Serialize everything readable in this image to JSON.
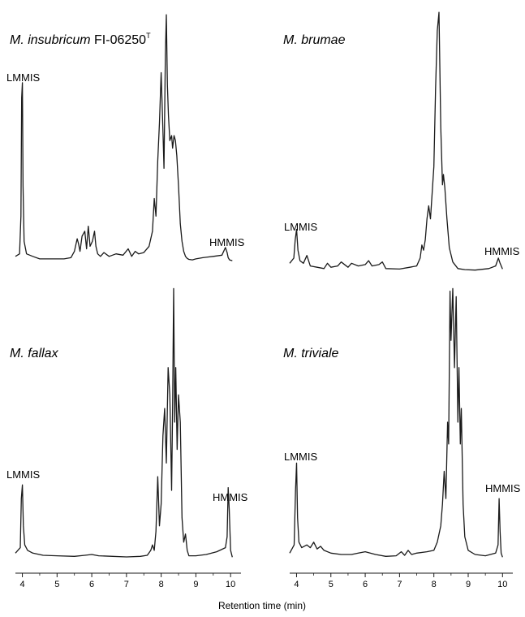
{
  "figure": {
    "x_axis_label": "Retention time (min)"
  },
  "chart_data": [
    {
      "type": "line",
      "title_italic": "M. insubricum",
      "title_rest": " FI-06250",
      "title_sup": "T",
      "xlim": [
        3.8,
        10.3
      ],
      "ylim": [
        0,
        1.0
      ],
      "xticks": [
        4,
        5,
        6,
        7,
        8,
        9,
        10
      ],
      "annotations": [
        {
          "label": "LMMIS",
          "x": 4.0
        },
        {
          "label": "HMMIS",
          "x": 9.9
        }
      ],
      "series": [
        {
          "x": [
            3.8,
            3.92,
            3.96,
            3.98,
            4.0,
            4.02,
            4.05,
            4.12,
            4.3,
            4.5,
            4.8,
            5.2,
            5.4,
            5.5,
            5.58,
            5.62,
            5.66,
            5.72,
            5.8,
            5.85,
            5.9,
            5.95,
            6.02,
            6.08,
            6.12,
            6.17,
            6.25,
            6.35,
            6.5,
            6.7,
            6.9,
            7.05,
            7.15,
            7.25,
            7.35,
            7.5,
            7.65,
            7.75,
            7.8,
            7.85,
            7.9,
            7.95,
            8.0,
            8.05,
            8.08,
            8.12,
            8.15,
            8.18,
            8.21,
            8.25,
            8.3,
            8.33,
            8.37,
            8.41,
            8.45,
            8.5,
            8.55,
            8.6,
            8.65,
            8.7,
            8.75,
            8.8,
            8.9,
            9.0,
            9.2,
            9.5,
            9.75,
            9.85,
            9.9,
            9.93,
            9.97,
            10.05
          ],
          "y": [
            0.02,
            0.03,
            0.18,
            0.65,
            0.71,
            0.3,
            0.08,
            0.03,
            0.02,
            0.01,
            0.01,
            0.01,
            0.015,
            0.04,
            0.09,
            0.07,
            0.04,
            0.1,
            0.12,
            0.05,
            0.14,
            0.06,
            0.08,
            0.12,
            0.06,
            0.03,
            0.02,
            0.035,
            0.02,
            0.03,
            0.025,
            0.05,
            0.02,
            0.04,
            0.03,
            0.035,
            0.06,
            0.12,
            0.25,
            0.18,
            0.4,
            0.55,
            0.75,
            0.52,
            0.37,
            0.82,
            0.98,
            0.7,
            0.58,
            0.48,
            0.5,
            0.45,
            0.5,
            0.48,
            0.42,
            0.3,
            0.15,
            0.08,
            0.04,
            0.02,
            0.012,
            0.008,
            0.006,
            0.01,
            0.015,
            0.02,
            0.025,
            0.055,
            0.035,
            0.015,
            0.006,
            0.003
          ]
        }
      ]
    },
    {
      "type": "line",
      "title_italic": "M. brumae",
      "title_rest": "",
      "title_sup": "",
      "xlim": [
        3.8,
        10.3
      ],
      "ylim": [
        0,
        1.0
      ],
      "xticks": [
        4,
        5,
        6,
        7,
        8,
        9,
        10
      ],
      "annotations": [
        {
          "label": "LMMIS",
          "x": 4.0
        },
        {
          "label": "HMMIS",
          "x": 9.9
        }
      ],
      "series": [
        {
          "x": [
            3.8,
            3.92,
            3.96,
            4.0,
            4.04,
            4.1,
            4.2,
            4.3,
            4.4,
            4.6,
            4.8,
            4.9,
            5.0,
            5.2,
            5.3,
            5.5,
            5.6,
            5.8,
            6.0,
            6.1,
            6.2,
            6.4,
            6.5,
            6.6,
            7.0,
            7.3,
            7.5,
            7.6,
            7.65,
            7.7,
            7.75,
            7.8,
            7.85,
            7.9,
            7.95,
            8.0,
            8.05,
            8.1,
            8.15,
            8.2,
            8.25,
            8.28,
            8.32,
            8.38,
            8.45,
            8.55,
            8.7,
            8.9,
            9.2,
            9.6,
            9.8,
            9.88,
            9.93,
            10.0
          ],
          "y": [
            0.03,
            0.05,
            0.12,
            0.16,
            0.08,
            0.04,
            0.03,
            0.06,
            0.02,
            0.015,
            0.01,
            0.03,
            0.015,
            0.02,
            0.035,
            0.015,
            0.03,
            0.02,
            0.025,
            0.04,
            0.02,
            0.025,
            0.035,
            0.01,
            0.008,
            0.015,
            0.02,
            0.05,
            0.1,
            0.08,
            0.12,
            0.2,
            0.25,
            0.2,
            0.3,
            0.4,
            0.7,
            0.92,
            0.99,
            0.55,
            0.33,
            0.37,
            0.32,
            0.2,
            0.09,
            0.035,
            0.01,
            0.006,
            0.004,
            0.01,
            0.02,
            0.05,
            0.03,
            0.008
          ]
        }
      ]
    },
    {
      "type": "line",
      "title_italic": "M. fallax",
      "title_rest": "",
      "title_sup": "",
      "xlim": [
        3.8,
        10.3
      ],
      "ylim": [
        0,
        1.0
      ],
      "xticks": [
        4,
        5,
        6,
        7,
        8,
        9,
        10
      ],
      "annotations": [
        {
          "label": "LMMIS",
          "x": 4.0
        },
        {
          "label": "HMMIS",
          "x": 9.9
        }
      ],
      "series": [
        {
          "x": [
            3.8,
            3.94,
            3.97,
            4.0,
            4.03,
            4.07,
            4.15,
            4.3,
            4.6,
            5.0,
            5.5,
            5.8,
            6.0,
            6.2,
            6.6,
            7.0,
            7.4,
            7.6,
            7.7,
            7.75,
            7.8,
            7.85,
            7.9,
            7.95,
            8.0,
            8.05,
            8.1,
            8.15,
            8.2,
            8.25,
            8.3,
            8.33,
            8.36,
            8.39,
            8.42,
            8.46,
            8.5,
            8.55,
            8.6,
            8.65,
            8.7,
            8.75,
            8.8,
            9.0,
            9.3,
            9.6,
            9.85,
            9.9,
            9.93,
            9.96,
            10.0,
            10.05
          ],
          "y": [
            0.02,
            0.04,
            0.22,
            0.27,
            0.12,
            0.05,
            0.03,
            0.02,
            0.012,
            0.01,
            0.008,
            0.012,
            0.015,
            0.01,
            0.008,
            0.006,
            0.008,
            0.012,
            0.03,
            0.05,
            0.03,
            0.1,
            0.3,
            0.12,
            0.2,
            0.45,
            0.55,
            0.35,
            0.7,
            0.6,
            0.25,
            0.55,
            0.99,
            0.5,
            0.7,
            0.4,
            0.6,
            0.5,
            0.15,
            0.06,
            0.09,
            0.03,
            0.01,
            0.01,
            0.015,
            0.025,
            0.04,
            0.08,
            0.26,
            0.18,
            0.03,
            0.005
          ]
        }
      ]
    },
    {
      "type": "line",
      "title_italic": "M. triviale",
      "title_rest": "",
      "title_sup": "",
      "xlim": [
        3.8,
        10.3
      ],
      "ylim": [
        0,
        1.0
      ],
      "xticks": [
        4,
        5,
        6,
        7,
        8,
        9,
        10
      ],
      "annotations": [
        {
          "label": "LMMIS",
          "x": 4.0
        },
        {
          "label": "HMMIS",
          "x": 9.9
        }
      ],
      "series": [
        {
          "x": [
            3.8,
            3.93,
            3.97,
            4.0,
            4.03,
            4.07,
            4.15,
            4.3,
            4.4,
            4.5,
            4.6,
            4.7,
            4.8,
            5.0,
            5.3,
            5.6,
            5.8,
            6.0,
            6.3,
            6.6,
            6.9,
            7.05,
            7.15,
            7.25,
            7.35,
            7.5,
            7.8,
            8.0,
            8.1,
            8.2,
            8.25,
            8.3,
            8.35,
            8.4,
            8.43,
            8.47,
            8.5,
            8.55,
            8.6,
            8.65,
            8.7,
            8.73,
            8.77,
            8.8,
            8.85,
            8.9,
            9.0,
            9.2,
            9.5,
            9.8,
            9.87,
            9.9,
            9.93,
            9.96,
            10.0
          ],
          "y": [
            0.02,
            0.05,
            0.25,
            0.35,
            0.15,
            0.06,
            0.04,
            0.05,
            0.04,
            0.06,
            0.035,
            0.045,
            0.03,
            0.02,
            0.015,
            0.015,
            0.02,
            0.025,
            0.015,
            0.008,
            0.01,
            0.025,
            0.012,
            0.03,
            0.015,
            0.02,
            0.025,
            0.03,
            0.06,
            0.12,
            0.2,
            0.32,
            0.22,
            0.5,
            0.42,
            0.98,
            0.8,
            0.99,
            0.7,
            0.96,
            0.5,
            0.7,
            0.42,
            0.55,
            0.2,
            0.08,
            0.03,
            0.015,
            0.01,
            0.02,
            0.05,
            0.22,
            0.1,
            0.02,
            0.005
          ]
        }
      ]
    }
  ]
}
